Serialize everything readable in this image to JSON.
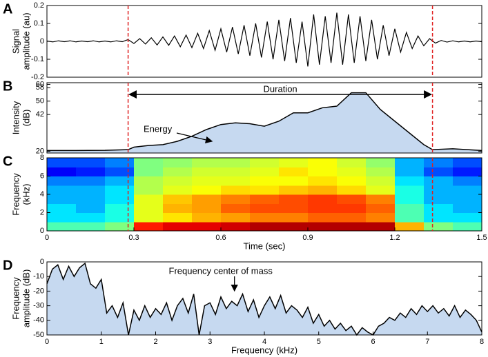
{
  "chart_data": [
    {
      "type": "line",
      "panel": "A",
      "ylabel": [
        "Signal",
        "amplitude (au)"
      ],
      "color": "#000000",
      "xlim": [
        0,
        1.5
      ],
      "ylim": [
        -0.2,
        0.2
      ],
      "yticks": [
        0.2,
        0.1,
        0,
        -0.1,
        -0.2
      ],
      "markers": [
        0.28,
        1.33
      ],
      "marker_color": "#e02020",
      "x": [
        0,
        0.02,
        0.04,
        0.06,
        0.08,
        0.1,
        0.12,
        0.14,
        0.16,
        0.18,
        0.2,
        0.22,
        0.24,
        0.26,
        0.28,
        0.3,
        0.32,
        0.34,
        0.36,
        0.38,
        0.4,
        0.42,
        0.44,
        0.46,
        0.48,
        0.5,
        0.52,
        0.54,
        0.56,
        0.58,
        0.6,
        0.62,
        0.64,
        0.66,
        0.68,
        0.7,
        0.72,
        0.74,
        0.76,
        0.78,
        0.8,
        0.82,
        0.84,
        0.86,
        0.88,
        0.9,
        0.92,
        0.94,
        0.96,
        0.98,
        1,
        1.02,
        1.04,
        1.06,
        1.08,
        1.1,
        1.12,
        1.14,
        1.16,
        1.18,
        1.2,
        1.22,
        1.24,
        1.26,
        1.28,
        1.3,
        1.32,
        1.34,
        1.36,
        1.38,
        1.4,
        1.42,
        1.44,
        1.46,
        1.48,
        1.5
      ],
      "values": [
        0.002,
        -0.003,
        0.003,
        -0.002,
        0.003,
        -0.003,
        0.002,
        -0.002,
        0.003,
        -0.003,
        0.002,
        -0.003,
        0.003,
        -0.002,
        0.01,
        -0.012,
        0.015,
        -0.015,
        0.02,
        -0.02,
        0.025,
        -0.022,
        0.03,
        -0.03,
        0.035,
        -0.035,
        0.045,
        -0.04,
        0.06,
        -0.05,
        0.07,
        -0.06,
        0.08,
        -0.07,
        0.09,
        -0.08,
        0.1,
        -0.09,
        0.11,
        -0.1,
        0.12,
        -0.11,
        0.13,
        -0.12,
        0.11,
        -0.14,
        0.15,
        -0.13,
        0.14,
        -0.12,
        0.16,
        -0.13,
        0.15,
        -0.12,
        0.14,
        -0.11,
        0.12,
        -0.1,
        0.09,
        -0.08,
        0.07,
        -0.06,
        0.05,
        -0.04,
        0.03,
        -0.025,
        0.015,
        -0.01,
        0.005,
        -0.004,
        0.003,
        -0.003,
        0.002,
        -0.003,
        0.002,
        -0.002
      ]
    },
    {
      "type": "area",
      "panel": "B",
      "ylabel": [
        "Intensity",
        "(dB)"
      ],
      "color": "#000000",
      "fill": "#c6d9f0",
      "xlim": [
        0,
        1.5
      ],
      "ylim": [
        19,
        61
      ],
      "yticks": [
        60,
        58,
        50,
        42,
        20
      ],
      "duration_label": "Duration",
      "energy_label": "Energy",
      "x": [
        0,
        0.1,
        0.2,
        0.28,
        0.3,
        0.35,
        0.4,
        0.45,
        0.5,
        0.55,
        0.6,
        0.65,
        0.7,
        0.75,
        0.8,
        0.85,
        0.9,
        0.95,
        1,
        1.05,
        1.1,
        1.15,
        1.2,
        1.25,
        1.3,
        1.33,
        1.4,
        1.5
      ],
      "values": [
        20.5,
        20.5,
        20.6,
        21,
        22.5,
        23.5,
        24,
        26,
        29,
        33,
        36,
        37,
        36.5,
        35,
        38,
        43,
        43,
        46,
        47,
        55,
        55,
        45,
        38,
        31,
        24,
        21,
        21.5,
        20.5
      ]
    },
    {
      "type": "heatmap",
      "panel": "C",
      "ylabel": [
        "Frequency",
        "(kHz)"
      ],
      "xlabel": "Time (sec)",
      "xlim": [
        0,
        1.5
      ],
      "xticks": [
        0,
        0.3,
        0.6,
        0.9,
        1.2,
        1.5
      ],
      "ylim": [
        0,
        8
      ],
      "yticks": [
        0,
        2,
        4,
        6,
        8
      ],
      "z": [
        [
          0.45,
          0.45,
          0.5,
          0.85,
          0.9,
          0.9,
          0.92,
          0.95,
          0.95,
          0.95,
          0.95,
          0.95,
          0.7,
          0.5,
          0.45
        ],
        [
          0.35,
          0.35,
          0.4,
          0.6,
          0.65,
          0.7,
          0.72,
          0.75,
          0.75,
          0.78,
          0.78,
          0.75,
          0.45,
          0.35,
          0.35
        ],
        [
          0.35,
          0.3,
          0.4,
          0.6,
          0.7,
          0.72,
          0.78,
          0.8,
          0.8,
          0.82,
          0.82,
          0.78,
          0.45,
          0.35,
          0.3
        ],
        [
          0.3,
          0.3,
          0.35,
          0.6,
          0.68,
          0.72,
          0.75,
          0.78,
          0.8,
          0.82,
          0.8,
          0.75,
          0.4,
          0.3,
          0.3
        ],
        [
          0.3,
          0.3,
          0.35,
          0.55,
          0.6,
          0.62,
          0.66,
          0.65,
          0.68,
          0.7,
          0.66,
          0.6,
          0.4,
          0.3,
          0.3
        ],
        [
          0.25,
          0.25,
          0.3,
          0.55,
          0.58,
          0.6,
          0.6,
          0.62,
          0.62,
          0.65,
          0.62,
          0.58,
          0.35,
          0.3,
          0.25
        ],
        [
          0.12,
          0.15,
          0.2,
          0.5,
          0.55,
          0.58,
          0.58,
          0.6,
          0.65,
          0.62,
          0.6,
          0.55,
          0.3,
          0.2,
          0.15
        ],
        [
          0.2,
          0.2,
          0.25,
          0.5,
          0.52,
          0.55,
          0.55,
          0.58,
          0.6,
          0.62,
          0.58,
          0.52,
          0.3,
          0.25,
          0.2
        ]
      ]
    },
    {
      "type": "area",
      "panel": "D",
      "ylabel": [
        "Frequency",
        "amplitude (dB)"
      ],
      "xlabel": "Frequency (kHz)",
      "color": "#000000",
      "fill": "#c6d9f0",
      "xlim": [
        0,
        8
      ],
      "xticks": [
        0,
        1,
        2,
        3,
        4,
        5,
        6,
        7,
        8
      ],
      "ylim": [
        -50,
        0
      ],
      "yticks": [
        0,
        -10,
        -20,
        -30,
        -40,
        -50
      ],
      "annotation": "Frequency center of mass",
      "center_of_mass": 3.45,
      "x": [
        0,
        0.1,
        0.2,
        0.3,
        0.4,
        0.5,
        0.6,
        0.7,
        0.8,
        0.9,
        1,
        1.1,
        1.2,
        1.3,
        1.4,
        1.5,
        1.6,
        1.7,
        1.8,
        1.9,
        2,
        2.1,
        2.2,
        2.3,
        2.4,
        2.5,
        2.6,
        2.7,
        2.8,
        2.9,
        3,
        3.1,
        3.2,
        3.3,
        3.4,
        3.5,
        3.6,
        3.7,
        3.8,
        3.9,
        4,
        4.1,
        4.2,
        4.3,
        4.4,
        4.5,
        4.6,
        4.7,
        4.8,
        4.9,
        5,
        5.1,
        5.2,
        5.3,
        5.4,
        5.5,
        5.6,
        5.7,
        5.8,
        5.9,
        6,
        6.1,
        6.2,
        6.3,
        6.4,
        6.5,
        6.6,
        6.7,
        6.8,
        6.9,
        7,
        7.1,
        7.2,
        7.3,
        7.4,
        7.5,
        7.6,
        7.7,
        7.8,
        7.9,
        8
      ],
      "values": [
        -15,
        -5,
        -2,
        -12,
        -3,
        -10,
        -4,
        -1,
        -15,
        -18,
        -12,
        -35,
        -30,
        -38,
        -28,
        -50,
        -33,
        -40,
        -30,
        -38,
        -32,
        -36,
        -28,
        -40,
        -30,
        -25,
        -35,
        -22,
        -50,
        -30,
        -28,
        -36,
        -24,
        -32,
        -27,
        -30,
        -22,
        -34,
        -26,
        -38,
        -30,
        -24,
        -32,
        -23,
        -35,
        -30,
        -33,
        -38,
        -31,
        -42,
        -36,
        -44,
        -40,
        -46,
        -42,
        -47,
        -44,
        -50,
        -45,
        -48,
        -50,
        -44,
        -42,
        -38,
        -40,
        -35,
        -38,
        -32,
        -36,
        -30,
        -34,
        -30,
        -35,
        -32,
        -37,
        -30,
        -38,
        -33,
        -36,
        -40,
        -48
      ]
    }
  ]
}
